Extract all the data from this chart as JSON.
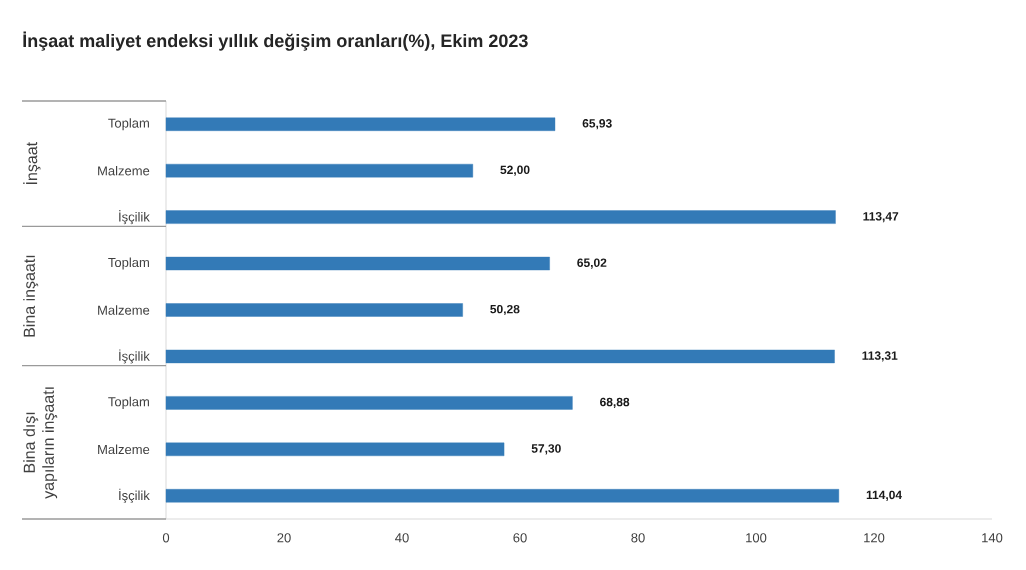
{
  "chart_data": {
    "type": "bar",
    "orientation": "horizontal",
    "title": "İnşaat maliyet endeksi yıllık değişim oranları(%), Ekim 2023",
    "categories": [
      "Toplam",
      "Malzeme",
      "İşçilik",
      "Toplam",
      "Malzeme",
      "İşçilik",
      "Toplam",
      "Malzeme",
      "İşçilik"
    ],
    "values": [
      65.93,
      52.0,
      113.47,
      65.02,
      50.28,
      113.31,
      68.88,
      57.3,
      114.04
    ],
    "value_labels": [
      "65,93",
      "52,00",
      "113,47",
      "65,02",
      "50,28",
      "113,31",
      "68,88",
      "57,30",
      "114,04"
    ],
    "color": "#337ab7",
    "xlim": [
      0,
      140
    ],
    "xticks": [
      0,
      20,
      40,
      60,
      80,
      100,
      120,
      140
    ],
    "annotations": [
      "İnşaat",
      "Bina inşaatı",
      "Bina dışı yapıların inşaatı"
    ]
  }
}
